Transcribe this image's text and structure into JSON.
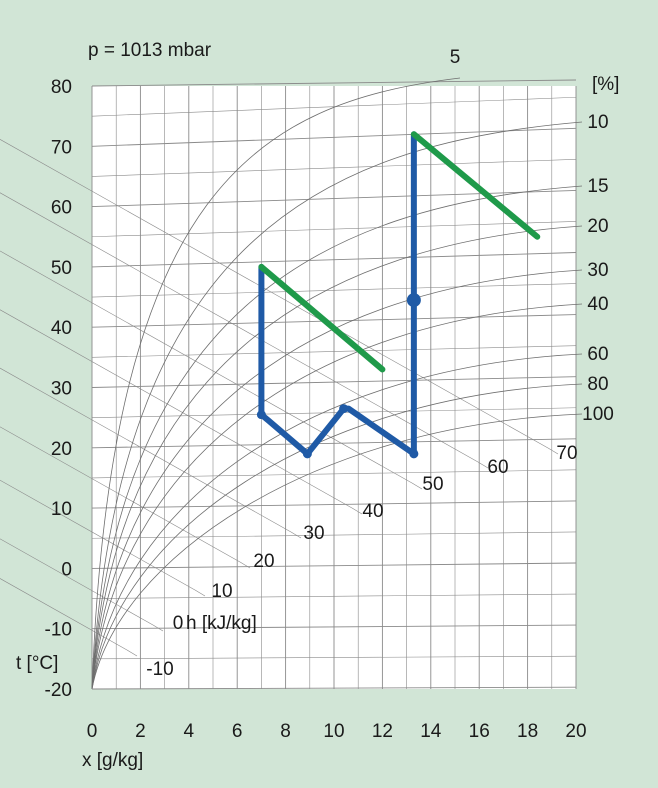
{
  "chart_data": {
    "type": "line",
    "title": "p = 1013 mbar",
    "xlabel": "x [g/kg]",
    "ylabel": "t [°C]",
    "xlim": [
      0,
      20
    ],
    "ylim": [
      -20,
      80
    ],
    "x_ticks": [
      "0",
      "2",
      "4",
      "6",
      "8",
      "10",
      "12",
      "14",
      "16",
      "18",
      "20"
    ],
    "y_ticks": [
      "80",
      "70",
      "60",
      "50",
      "40",
      "30",
      "20",
      "10",
      "0",
      "-10",
      "-20"
    ],
    "rh_unit": "[%]",
    "rh_curves": [
      "5",
      "10",
      "15",
      "20",
      "30",
      "40",
      "60",
      "80",
      "100"
    ],
    "enthalpy_unit": "h [kJ/kg]",
    "enthalpy_lines": [
      "-10",
      "0",
      "10",
      "20",
      "30",
      "40",
      "50",
      "60",
      "70"
    ],
    "grid": true,
    "colors": {
      "blue": "#1f5aa6",
      "green": "#1f9a4a",
      "background": "#d1e5d6",
      "plot_bg": "#ffffff",
      "grid": "#8a8a8a"
    },
    "series": [
      {
        "color": "blue",
        "points": [
          [
            7.0,
            50
          ],
          [
            7.0,
            25.5
          ],
          [
            7.3,
            24.5
          ],
          [
            8.9,
            19
          ],
          [
            10.4,
            26.5
          ],
          [
            10.6,
            26.5
          ],
          [
            13.3,
            19
          ],
          [
            13.3,
            72
          ]
        ]
      },
      {
        "color": "green",
        "points": [
          [
            7.0,
            50
          ],
          [
            12.0,
            33
          ]
        ]
      },
      {
        "color": "green",
        "points": [
          [
            13.3,
            72
          ],
          [
            18.4,
            55
          ]
        ]
      }
    ],
    "markers": [
      [
        7.0,
        25.5
      ],
      [
        8.9,
        19
      ],
      [
        10.4,
        26.5
      ],
      [
        13.3,
        19
      ],
      [
        13.3,
        44.5
      ]
    ]
  }
}
